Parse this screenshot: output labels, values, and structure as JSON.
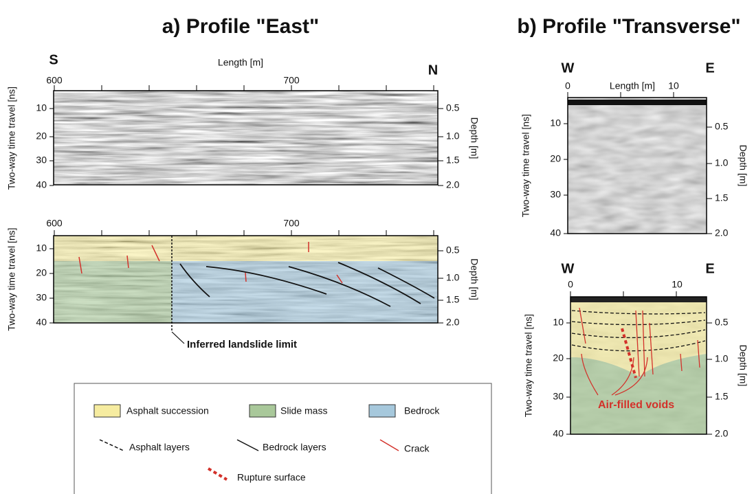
{
  "panel_a": {
    "title": "a) Profile \"East\"",
    "left_label": "S",
    "right_label": "N",
    "x_label": "Length [m]",
    "x_ticks": [
      "600",
      "700"
    ],
    "y_label": "Two-way time travel [ns]",
    "y_ticks": [
      "10",
      "20",
      "30",
      "40"
    ],
    "depth_label": "Depth [m]",
    "depth_ticks": [
      "0.5",
      "1.0",
      "1.5",
      "2.0"
    ],
    "annotation": "Inferred landslide limit"
  },
  "panel_b": {
    "title": "b) Profile \"Transverse\"",
    "left_label": "W",
    "right_label": "E",
    "x_label": "Length [m]",
    "x_ticks": [
      "0",
      "10"
    ],
    "y_label": "Two-way time travel [ns]",
    "y_ticks": [
      "10",
      "20",
      "30",
      "40"
    ],
    "depth_label": "Depth [m]",
    "depth_ticks": [
      "0.5",
      "1.0",
      "1.5",
      "2.0"
    ],
    "annotation": "Air-filled voids"
  },
  "legend": {
    "items": [
      "Asphalt succession",
      "Slide mass",
      "Bedrock",
      "Asphalt layers",
      "Bedrock layers",
      "Crack",
      "Rupture surface"
    ]
  }
}
